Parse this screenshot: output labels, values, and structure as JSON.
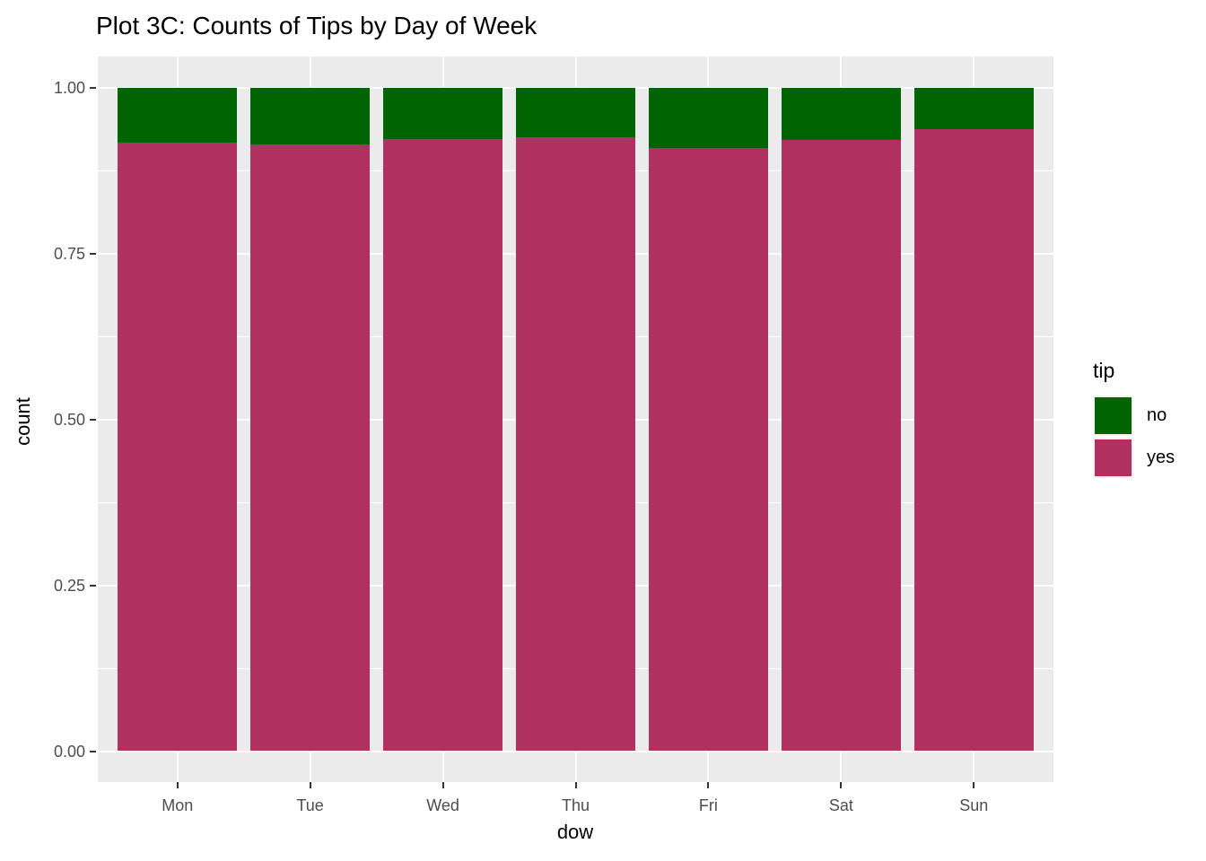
{
  "title": "Plot 3C: Counts of Tips by Day of Week",
  "chart_data": {
    "type": "bar",
    "subtype": "stacked-fill",
    "title": "Plot 3C: Counts of Tips by Day of Week",
    "xlabel": "dow",
    "ylabel": "count",
    "categories": [
      "Mon",
      "Tue",
      "Wed",
      "Thu",
      "Fri",
      "Sat",
      "Sun"
    ],
    "series": [
      {
        "name": "yes",
        "color": "#B03060",
        "values": [
          0.918,
          0.915,
          0.923,
          0.926,
          0.91,
          0.922,
          0.938
        ]
      },
      {
        "name": "no",
        "color": "#006400",
        "values": [
          0.082,
          0.085,
          0.077,
          0.074,
          0.09,
          0.078,
          0.062
        ]
      }
    ],
    "ylim": [
      0,
      1
    ],
    "yticks": [
      0.0,
      0.25,
      0.5,
      0.75,
      1.0
    ],
    "ytick_labels": [
      "0.00",
      "0.25",
      "0.50",
      "0.75",
      "1.00"
    ],
    "yminor_ticks": [
      0.125,
      0.375,
      0.625,
      0.875
    ],
    "grid": "major-and-minor, white on gray panel",
    "legend": {
      "title": "tip",
      "position": "right",
      "entries": [
        {
          "label": "no",
          "color": "#006400"
        },
        {
          "label": "yes",
          "color": "#B03060"
        }
      ]
    },
    "style": {
      "panel_background": "#EBEBEB",
      "gridline_color": "#FFFFFF",
      "tick_text_color": "#4D4D4D",
      "tick_mark_color": "#333333",
      "text_color": "#000000"
    }
  }
}
